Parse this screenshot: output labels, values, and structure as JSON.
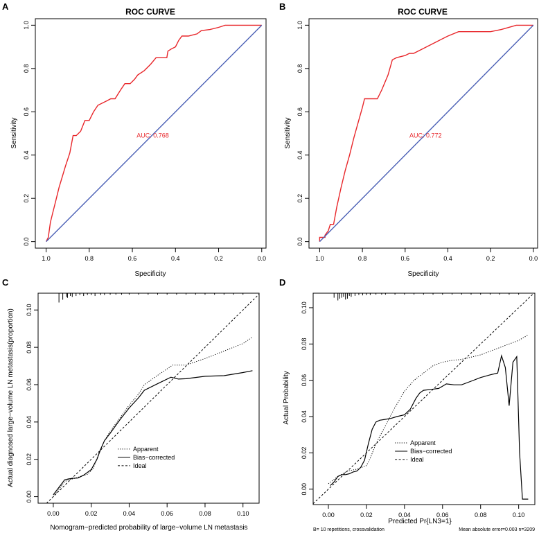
{
  "chart_data": [
    {
      "panel": "A",
      "type": "line",
      "title": "ROC CURVE",
      "xlabel": "Specificity",
      "ylabel": "Sensitivity",
      "xlim": [
        1.05,
        -0.02
      ],
      "ylim": [
        -0.03,
        1.03
      ],
      "x_ticks": [
        1.0,
        0.8,
        0.6,
        0.4,
        0.2,
        0.0
      ],
      "x_tick_labels": [
        "1.0",
        "0.8",
        "0.6",
        "0.4",
        "0.2",
        "0.0"
      ],
      "y_ticks": [
        0.0,
        0.2,
        0.4,
        0.6,
        0.8,
        1.0
      ],
      "y_tick_labels": [
        "0.0",
        "0.2",
        "0.4",
        "0.6",
        "0.8",
        "1.0"
      ],
      "annotation": "AUC: 0.768",
      "annotation_pos": [
        0.58,
        0.48
      ],
      "series": [
        {
          "name": "ROC",
          "color": "#e8262a",
          "x": [
            1.0,
            0.99,
            0.98,
            0.97,
            0.955,
            0.94,
            0.925,
            0.91,
            0.9,
            0.89,
            0.875,
            0.86,
            0.84,
            0.82,
            0.8,
            0.78,
            0.76,
            0.72,
            0.7,
            0.68,
            0.655,
            0.635,
            0.61,
            0.59,
            0.575,
            0.545,
            0.515,
            0.49,
            0.465,
            0.44,
            0.435,
            0.42,
            0.4,
            0.385,
            0.37,
            0.34,
            0.32,
            0.3,
            0.28,
            0.24,
            0.2,
            0.17,
            0.12,
            0.09,
            0.06,
            0.02,
            0.0
          ],
          "y": [
            0.0,
            0.02,
            0.09,
            0.13,
            0.19,
            0.25,
            0.3,
            0.35,
            0.38,
            0.41,
            0.49,
            0.49,
            0.51,
            0.56,
            0.56,
            0.6,
            0.63,
            0.65,
            0.66,
            0.66,
            0.7,
            0.73,
            0.73,
            0.75,
            0.77,
            0.79,
            0.82,
            0.85,
            0.85,
            0.85,
            0.88,
            0.89,
            0.9,
            0.93,
            0.95,
            0.95,
            0.955,
            0.96,
            0.975,
            0.98,
            0.99,
            1.0,
            1.0,
            1.0,
            1.0,
            1.0,
            1.0
          ]
        },
        {
          "name": "Reference",
          "color": "#4a5fb5",
          "x": [
            1.0,
            0.0
          ],
          "y": [
            0.0,
            1.0
          ]
        }
      ]
    },
    {
      "panel": "B",
      "type": "line",
      "title": "ROC CURVE",
      "xlabel": "Specificity",
      "ylabel": "Sensitivity",
      "xlim": [
        1.05,
        -0.02
      ],
      "ylim": [
        -0.03,
        1.03
      ],
      "x_ticks": [
        1.0,
        0.8,
        0.6,
        0.4,
        0.2,
        0.0
      ],
      "x_tick_labels": [
        "1.0",
        "0.8",
        "0.6",
        "0.4",
        "0.2",
        "0.0"
      ],
      "y_ticks": [
        0.0,
        0.2,
        0.4,
        0.6,
        0.8,
        1.0
      ],
      "y_tick_labels": [
        "0.0",
        "0.2",
        "0.4",
        "0.6",
        "0.8",
        "1.0"
      ],
      "annotation": "AUC: 0.772",
      "annotation_pos": [
        0.58,
        0.48
      ],
      "series": [
        {
          "name": "ROC",
          "color": "#e8262a",
          "x": [
            1.0,
            1.0,
            0.975,
            0.975,
            0.96,
            0.95,
            0.935,
            0.92,
            0.9,
            0.88,
            0.86,
            0.84,
            0.82,
            0.8,
            0.79,
            0.78,
            0.73,
            0.71,
            0.68,
            0.66,
            0.64,
            0.6,
            0.58,
            0.56,
            0.52,
            0.48,
            0.44,
            0.4,
            0.35,
            0.3,
            0.22,
            0.2,
            0.15,
            0.08,
            0.05,
            0.02,
            0.0
          ],
          "y": [
            0.0,
            0.02,
            0.02,
            0.03,
            0.05,
            0.08,
            0.08,
            0.16,
            0.25,
            0.33,
            0.4,
            0.48,
            0.55,
            0.62,
            0.66,
            0.66,
            0.66,
            0.7,
            0.77,
            0.84,
            0.85,
            0.86,
            0.87,
            0.87,
            0.89,
            0.91,
            0.93,
            0.95,
            0.97,
            0.97,
            0.97,
            0.97,
            0.98,
            1.0,
            1.0,
            1.0,
            1.0
          ]
        },
        {
          "name": "Reference",
          "color": "#4a5fb5",
          "x": [
            1.0,
            0.0
          ],
          "y": [
            0.0,
            1.0
          ]
        }
      ]
    },
    {
      "panel": "C",
      "type": "line",
      "title": "",
      "xlabel": "Nomogram−predicted probability of large−volume LN metastasis",
      "ylabel": "Actual diagnosed large−volume LN metastasis(proportion)",
      "xlim": [
        -0.008,
        0.1085
      ],
      "ylim": [
        -0.0035,
        0.109
      ],
      "x_ticks": [
        0.0,
        0.02,
        0.04,
        0.06,
        0.08,
        0.1
      ],
      "x_tick_labels": [
        "0.00",
        "0.02",
        "0.04",
        "0.06",
        "0.08",
        "0.10"
      ],
      "y_ticks": [
        0.0,
        0.02,
        0.04,
        0.06,
        0.08,
        0.1
      ],
      "y_tick_labels": [
        "0.00",
        "0.02",
        "0.04",
        "0.06",
        "0.08",
        "0.10"
      ],
      "rug_x": [
        0.003,
        0.005,
        0.007,
        0.0075,
        0.009,
        0.01,
        0.012,
        0.014,
        0.016,
        0.018,
        0.02,
        0.022,
        0.025,
        0.027,
        0.03,
        0.033,
        0.036,
        0.04,
        0.045,
        0.05,
        0.055,
        0.06,
        0.065,
        0.07,
        0.075,
        0.08,
        0.085,
        0.09,
        0.095,
        0.1
      ],
      "rug_h": [
        0.005,
        0.0035,
        0.002,
        0.0025,
        0.0015,
        0.002,
        0.0015,
        0.001,
        0.0015,
        0.001,
        0.001,
        0.0015,
        0.001,
        0.001,
        0.0008,
        0.0008,
        0.0008,
        0.0008,
        0.0008,
        0.0008,
        0.0008,
        0.0008,
        0.0008,
        0.0008,
        0.0008,
        0.0008,
        0.0008,
        0.0008,
        0.0008,
        0.0008
      ],
      "legend": {
        "labels": [
          "Apparent",
          "Bias−corrected",
          "Ideal"
        ],
        "pos": [
          0.034,
          0.0255
        ]
      },
      "series": [
        {
          "name": "Apparent",
          "style": "dotted",
          "x": [
            0.0,
            0.003,
            0.006,
            0.008,
            0.01,
            0.012,
            0.015,
            0.018,
            0.021,
            0.024,
            0.027,
            0.03,
            0.035,
            0.04,
            0.045,
            0.048,
            0.055,
            0.063,
            0.07,
            0.08,
            0.09,
            0.1,
            0.105
          ],
          "y": [
            0.0,
            0.004,
            0.008,
            0.009,
            0.0095,
            0.01,
            0.011,
            0.012,
            0.015,
            0.023,
            0.03,
            0.035,
            0.042,
            0.049,
            0.055,
            0.06,
            0.065,
            0.0705,
            0.0705,
            0.074,
            0.078,
            0.082,
            0.0855
          ]
        },
        {
          "name": "Bias−corrected",
          "style": "solid",
          "x": [
            0.0,
            0.003,
            0.006,
            0.008,
            0.01,
            0.013,
            0.016,
            0.02,
            0.023,
            0.025,
            0.027,
            0.03,
            0.035,
            0.04,
            0.045,
            0.048,
            0.055,
            0.062,
            0.066,
            0.07,
            0.08,
            0.09,
            0.1,
            0.105
          ],
          "y": [
            0.001,
            0.005,
            0.009,
            0.0095,
            0.0098,
            0.01,
            0.0115,
            0.0145,
            0.02,
            0.0255,
            0.03,
            0.034,
            0.041,
            0.0475,
            0.053,
            0.057,
            0.0605,
            0.064,
            0.063,
            0.0632,
            0.0645,
            0.0648,
            0.0665,
            0.0675
          ]
        },
        {
          "name": "Ideal",
          "style": "dashed",
          "x": [
            -0.005,
            0.1085
          ],
          "y": [
            -0.005,
            0.1085
          ]
        }
      ]
    },
    {
      "panel": "D",
      "type": "line",
      "title": "",
      "xlabel": "Predicted Pr{LN3=1}",
      "ylabel": "Actual Probability",
      "xlim": [
        -0.008,
        0.1085
      ],
      "ylim": [
        -0.0085,
        0.108
      ],
      "x_ticks": [
        0.0,
        0.02,
        0.04,
        0.06,
        0.08,
        0.1
      ],
      "x_tick_labels": [
        "0.00",
        "0.02",
        "0.04",
        "0.06",
        "0.08",
        "0.10"
      ],
      "y_ticks": [
        0.0,
        0.02,
        0.04,
        0.06,
        0.08,
        0.1
      ],
      "y_tick_labels": [
        "0.00",
        "0.02",
        "0.04",
        "0.06",
        "0.08",
        "0.10"
      ],
      "rug_x": [
        0.003,
        0.005,
        0.006,
        0.007,
        0.008,
        0.009,
        0.01,
        0.011,
        0.012,
        0.014,
        0.016,
        0.018,
        0.02,
        0.022,
        0.025,
        0.028,
        0.03,
        0.035,
        0.04,
        0.045,
        0.05,
        0.055,
        0.06,
        0.065,
        0.07,
        0.075,
        0.08,
        0.085,
        0.09,
        0.095,
        0.1
      ],
      "rug_h": [
        0.0025,
        0.004,
        0.003,
        0.0025,
        0.002,
        0.0035,
        0.003,
        0.0015,
        0.002,
        0.0015,
        0.001,
        0.0012,
        0.001,
        0.001,
        0.0008,
        0.0008,
        0.0008,
        0.0008,
        0.0008,
        0.0008,
        0.0008,
        0.0008,
        0.0008,
        0.0008,
        0.0008,
        0.0008,
        0.0008,
        0.0008,
        0.0008,
        0.0008,
        0.0008
      ],
      "legend": {
        "labels": [
          "Apparent",
          "Bias−corrected",
          "Ideal"
        ],
        "pos": [
          0.035,
          0.0255
        ]
      },
      "footnote_left": "B= 10 repetitions, crossvalidation",
      "footnote_right": "Mean absolute error=0.003 n=3209",
      "series": [
        {
          "name": "Apparent",
          "style": "dotted",
          "x": [
            0.0,
            0.005,
            0.01,
            0.015,
            0.02,
            0.022,
            0.025,
            0.03,
            0.035,
            0.04,
            0.045,
            0.05,
            0.055,
            0.06,
            0.065,
            0.07,
            0.08,
            0.09,
            0.1,
            0.105
          ],
          "y": [
            0.003,
            0.007,
            0.01,
            0.011,
            0.013,
            0.017,
            0.025,
            0.035,
            0.045,
            0.054,
            0.06,
            0.064,
            0.068,
            0.07,
            0.071,
            0.0715,
            0.074,
            0.078,
            0.082,
            0.085
          ]
        },
        {
          "name": "Bias−corrected",
          "style": "solid",
          "x": [
            0.001,
            0.003,
            0.005,
            0.007,
            0.009,
            0.011,
            0.013,
            0.015,
            0.017,
            0.019,
            0.021,
            0.023,
            0.025,
            0.027,
            0.03,
            0.033,
            0.036,
            0.04,
            0.043,
            0.046,
            0.048,
            0.05,
            0.054,
            0.058,
            0.062,
            0.066,
            0.07,
            0.075,
            0.08,
            0.085,
            0.089,
            0.091,
            0.093,
            0.095,
            0.097,
            0.099,
            0.1005,
            0.102,
            0.104,
            0.105
          ],
          "y": [
            0.002,
            0.004,
            0.007,
            0.008,
            0.008,
            0.0085,
            0.0095,
            0.01,
            0.012,
            0.016,
            0.025,
            0.033,
            0.037,
            0.038,
            0.0385,
            0.039,
            0.04,
            0.041,
            0.044,
            0.05,
            0.053,
            0.0545,
            0.055,
            0.0555,
            0.058,
            0.0575,
            0.0575,
            0.0595,
            0.0615,
            0.063,
            0.064,
            0.0735,
            0.067,
            0.046,
            0.07,
            0.073,
            0.02,
            -0.0055,
            -0.0055,
            -0.0055
          ]
        },
        {
          "name": "Ideal",
          "style": "dashed",
          "x": [
            -0.008,
            0.1085
          ],
          "y": [
            -0.008,
            0.1085
          ]
        }
      ]
    }
  ]
}
